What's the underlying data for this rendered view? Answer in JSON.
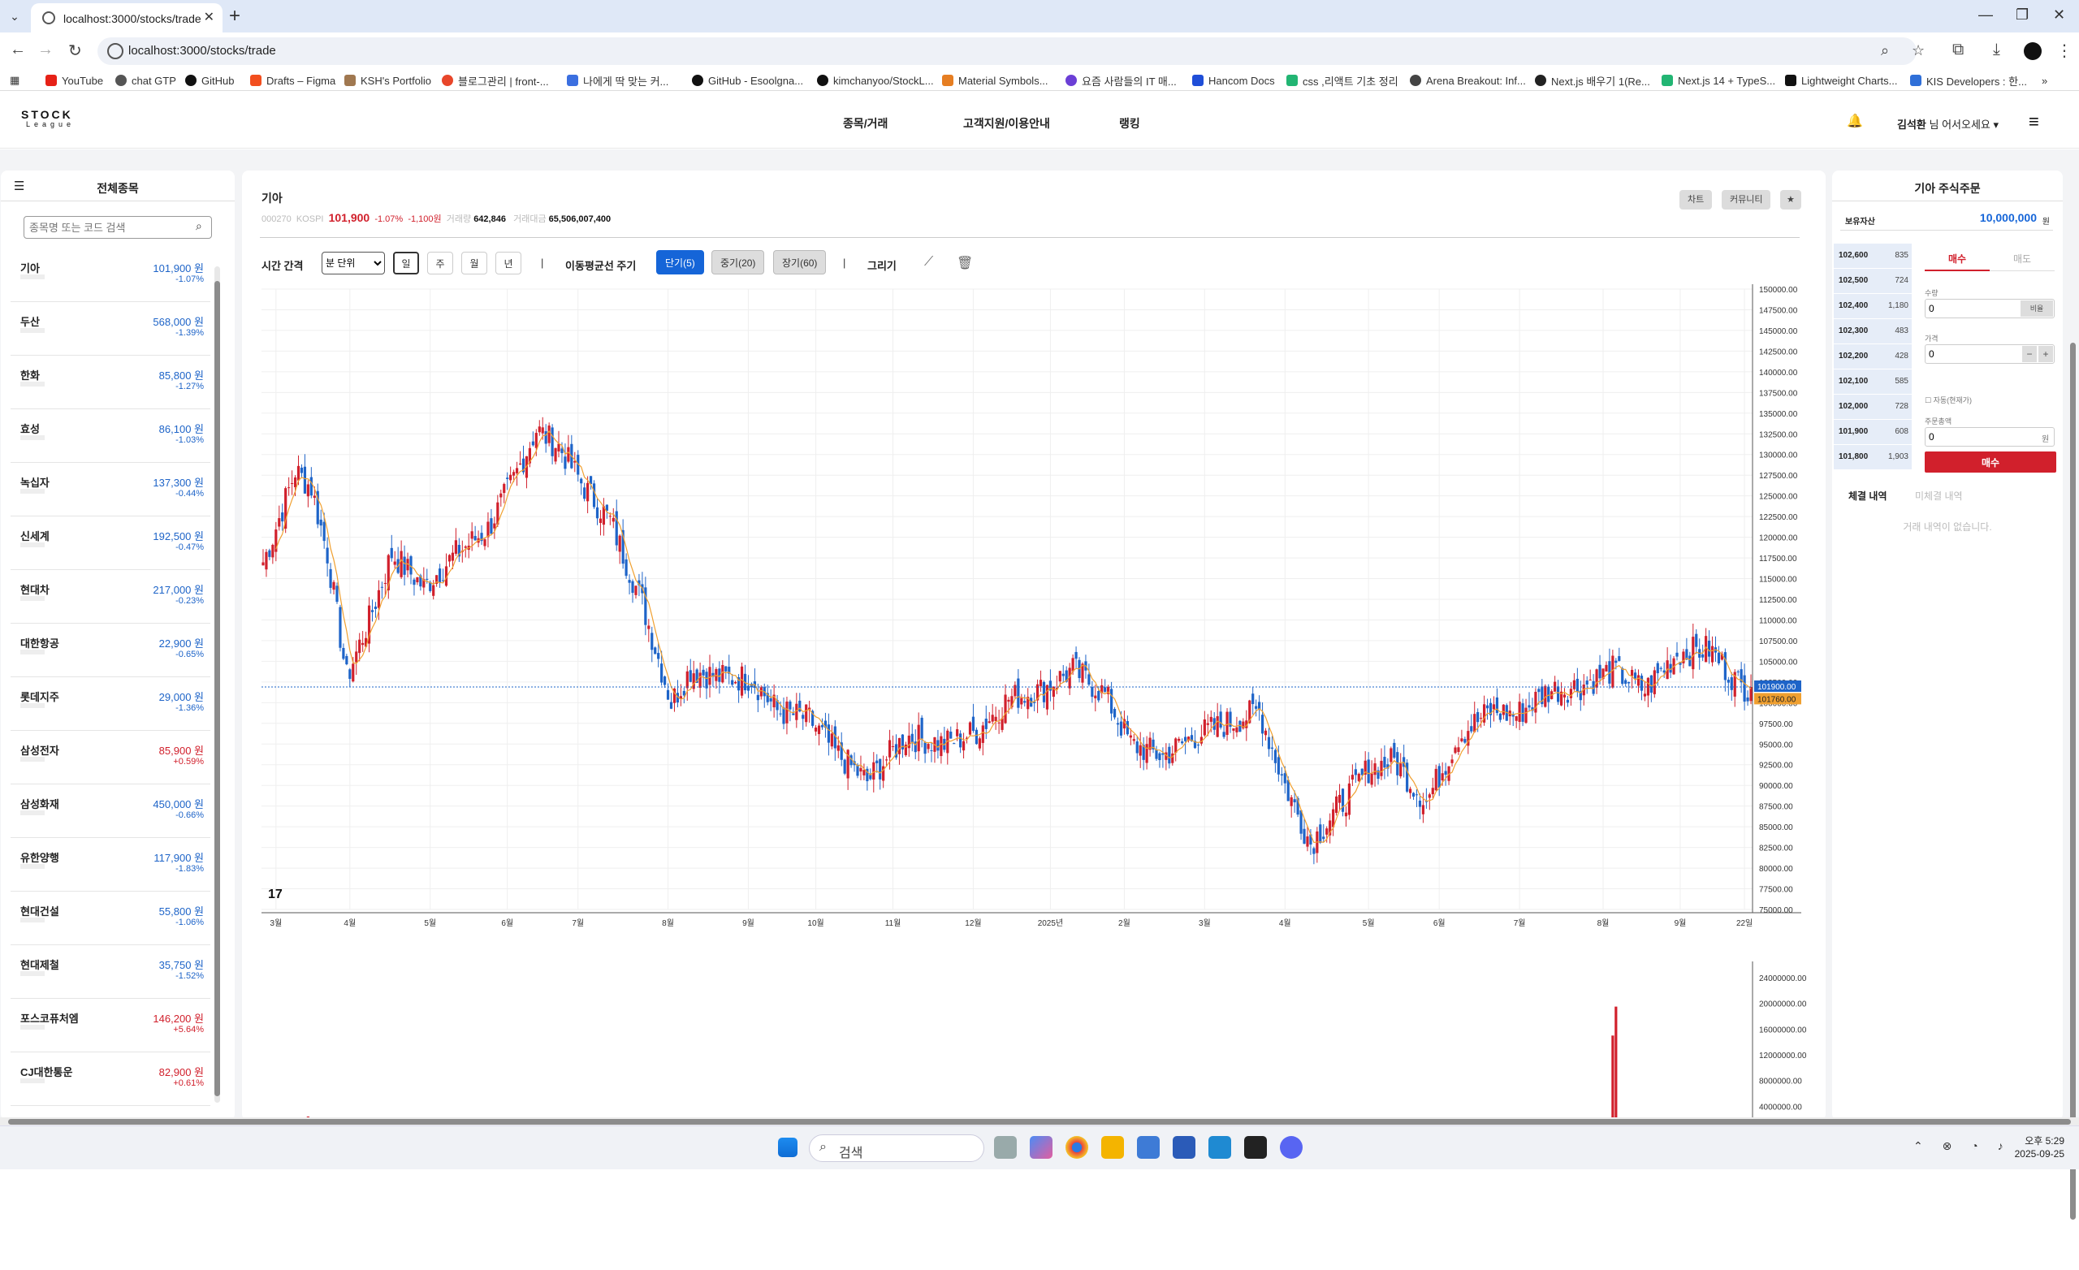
{
  "browser": {
    "tab_title": "localhost:3000/stocks/trade",
    "url": "localhost:3000/stocks/trade",
    "bookmarks": [
      "YouTube",
      "chat GTP",
      "GitHub",
      "Drafts – Figma",
      "KSH's Portfolio",
      "블로그관리 | front-...",
      "나에게 딱 맞는 커...",
      "GitHub - Esoolgna...",
      "kimchanyoo/StockL...",
      "Material Symbols...",
      "요즘 사람들의 IT 매...",
      "Hancom Docs",
      "css ,리액트 기초 정리",
      "Arena Breakout: Inf...",
      "Next.js 배우기 1(Re...",
      "Next.js 14 + TypeS...",
      "Lightweight Charts...",
      "KIS Developers : 한..."
    ]
  },
  "header": {
    "logo_top": "STOCK",
    "logo_bottom": "League",
    "nav": [
      "종목/거래",
      "고객지원/이용안내",
      "랭킹"
    ],
    "user_name": "김석환",
    "user_suffix": " 님 어서오세요 ▾"
  },
  "stock_list": {
    "title": "전체종목",
    "search_placeholder": "종목명 또는 코드 검색",
    "items": [
      {
        "name": "기아",
        "price": "101,900 원",
        "rate": "-1.07%",
        "dir": "down"
      },
      {
        "name": "두산",
        "price": "568,000 원",
        "rate": "-1.39%",
        "dir": "down"
      },
      {
        "name": "한화",
        "price": "85,800 원",
        "rate": "-1.27%",
        "dir": "down"
      },
      {
        "name": "효성",
        "price": "86,100 원",
        "rate": "-1.03%",
        "dir": "down"
      },
      {
        "name": "녹십자",
        "price": "137,300 원",
        "rate": "-0.44%",
        "dir": "down"
      },
      {
        "name": "신세계",
        "price": "192,500 원",
        "rate": "-0.47%",
        "dir": "down"
      },
      {
        "name": "현대차",
        "price": "217,000 원",
        "rate": "-0.23%",
        "dir": "down"
      },
      {
        "name": "대한항공",
        "price": "22,900 원",
        "rate": "-0.65%",
        "dir": "down"
      },
      {
        "name": "롯데지주",
        "price": "29,000 원",
        "rate": "-1.36%",
        "dir": "down"
      },
      {
        "name": "삼성전자",
        "price": "85,900 원",
        "rate": "+0.59%",
        "dir": "up"
      },
      {
        "name": "삼성화재",
        "price": "450,000 원",
        "rate": "-0.66%",
        "dir": "down"
      },
      {
        "name": "유한양행",
        "price": "117,900 원",
        "rate": "-1.83%",
        "dir": "down"
      },
      {
        "name": "현대건설",
        "price": "55,800 원",
        "rate": "-1.06%",
        "dir": "down"
      },
      {
        "name": "현대제철",
        "price": "35,750 원",
        "rate": "-1.52%",
        "dir": "down"
      },
      {
        "name": "포스코퓨처엠",
        "price": "146,200 원",
        "rate": "+5.64%",
        "dir": "up"
      },
      {
        "name": "CJ대한통운",
        "price": "82,900 원",
        "rate": "+0.61%",
        "dir": "up"
      }
    ]
  },
  "stock": {
    "name": "기아",
    "code": "000270",
    "market": "KOSPI",
    "price": "101,900",
    "change_rate": "-1.07%",
    "change_amount": "-1,100원",
    "volume_label": "거래량",
    "volume": "642,846",
    "amount_label": "거래대금",
    "amount": "65,506,007,400",
    "btn_chart": "차트",
    "btn_community": "커뮤니티",
    "btn_fav": "★"
  },
  "controls": {
    "interval_label": "시간 간격",
    "unit_select": "분 단위",
    "periods": [
      "일",
      "주",
      "월",
      "년"
    ],
    "ma_label": "이동평균선 주기",
    "ma": [
      "단기(5)",
      "중기(20)",
      "장기(60)"
    ],
    "draw_label": "그리기"
  },
  "chart_data": {
    "type": "candlestick",
    "price_ticks": [
      "150000.00",
      "147500.00",
      "145000.00",
      "142500.00",
      "140000.00",
      "137500.00",
      "135000.00",
      "132500.00",
      "130000.00",
      "127500.00",
      "125000.00",
      "122500.00",
      "120000.00",
      "117500.00",
      "115000.00",
      "112500.00",
      "110000.00",
      "107500.00",
      "105000.00",
      "102500.00",
      "100000.00",
      "97500.00",
      "95000.00",
      "92500.00",
      "90000.00",
      "87500.00",
      "85000.00",
      "82500.00",
      "80000.00",
      "77500.00",
      "75000.00"
    ],
    "ylim": [
      75000,
      150000
    ],
    "x_ticks": [
      "3월",
      "4월",
      "5월",
      "6월",
      "7월",
      "8월",
      "9월",
      "10월",
      "11월",
      "12월",
      "2025년",
      "2월",
      "3월",
      "4월",
      "5월",
      "6월",
      "7월",
      "8월",
      "9월",
      "22일"
    ],
    "x_tick_index": [
      4,
      27,
      52,
      76,
      98,
      126,
      151,
      172,
      196,
      221,
      245,
      268,
      293,
      318,
      344,
      366,
      391,
      417,
      441,
      461
    ],
    "last_label": "101900.00",
    "ma_label_value": "101760.00",
    "last_value": 101900,
    "ma_value": 101760,
    "anchors": [
      [
        0,
        117000
      ],
      [
        3,
        120000
      ],
      [
        10,
        128000
      ],
      [
        15,
        126000
      ],
      [
        20,
        118000
      ],
      [
        26,
        103000
      ],
      [
        33,
        110000
      ],
      [
        40,
        118000
      ],
      [
        50,
        114000
      ],
      [
        60,
        118000
      ],
      [
        70,
        121000
      ],
      [
        78,
        127000
      ],
      [
        85,
        133000
      ],
      [
        92,
        131000
      ],
      [
        100,
        126000
      ],
      [
        108,
        122000
      ],
      [
        118,
        112000
      ],
      [
        127,
        100000
      ],
      [
        133,
        104000
      ],
      [
        143,
        103000
      ],
      [
        152,
        103000
      ],
      [
        160,
        99000
      ],
      [
        170,
        98000
      ],
      [
        178,
        94000
      ],
      [
        188,
        90500
      ],
      [
        200,
        96000
      ],
      [
        212,
        95000
      ],
      [
        222,
        96500
      ],
      [
        232,
        100500
      ],
      [
        242,
        101500
      ],
      [
        252,
        104000
      ],
      [
        262,
        101000
      ],
      [
        270,
        95000
      ],
      [
        280,
        93500
      ],
      [
        290,
        96000
      ],
      [
        300,
        97500
      ],
      [
        310,
        99000
      ],
      [
        318,
        90000
      ],
      [
        326,
        83000
      ],
      [
        334,
        87000
      ],
      [
        344,
        92000
      ],
      [
        352,
        93000
      ],
      [
        362,
        88000
      ],
      [
        372,
        96000
      ],
      [
        382,
        99000
      ],
      [
        390,
        98500
      ],
      [
        400,
        101500
      ],
      [
        410,
        102000
      ],
      [
        420,
        104000
      ],
      [
        430,
        101500
      ],
      [
        440,
        106000
      ],
      [
        450,
        106500
      ],
      [
        460,
        101900
      ]
    ],
    "volume_ticks": [
      "24000000.00",
      "20000000.00",
      "16000000.00",
      "12000000.00",
      "8000000.00",
      "4000000.00"
    ],
    "vol_max": 24000000
  },
  "order": {
    "title": "기아 주식주문",
    "asset_label": "보유자산",
    "asset_value": "10,000,000",
    "asset_unit": "원",
    "book": [
      {
        "price": "102,600",
        "qty": "835"
      },
      {
        "price": "102,500",
        "qty": "724"
      },
      {
        "price": "102,400",
        "qty": "1,180"
      },
      {
        "price": "102,300",
        "qty": "483"
      },
      {
        "price": "102,200",
        "qty": "428"
      },
      {
        "price": "102,100",
        "qty": "585"
      },
      {
        "price": "102,000",
        "qty": "728"
      },
      {
        "price": "101,900",
        "qty": "608"
      },
      {
        "price": "101,800",
        "qty": "1,903"
      }
    ],
    "tab_buy": "매수",
    "tab_sell": "매도",
    "qty_label": "수량",
    "qty_value": "0",
    "qty_unit": "비율",
    "price_label": "가격",
    "price_value": "0",
    "auto_label": "자동(현재가)",
    "total_label": "주문총액",
    "total_value": "0",
    "total_unit": "원",
    "submit": "매수",
    "tab_exec": "체결 내역",
    "tab_unfilled": "미체결 내역",
    "empty_msg": "거래 내역이 없습니다."
  },
  "taskbar": {
    "search": "검색",
    "time": "오후 5:29",
    "date": "2025-09-25"
  }
}
